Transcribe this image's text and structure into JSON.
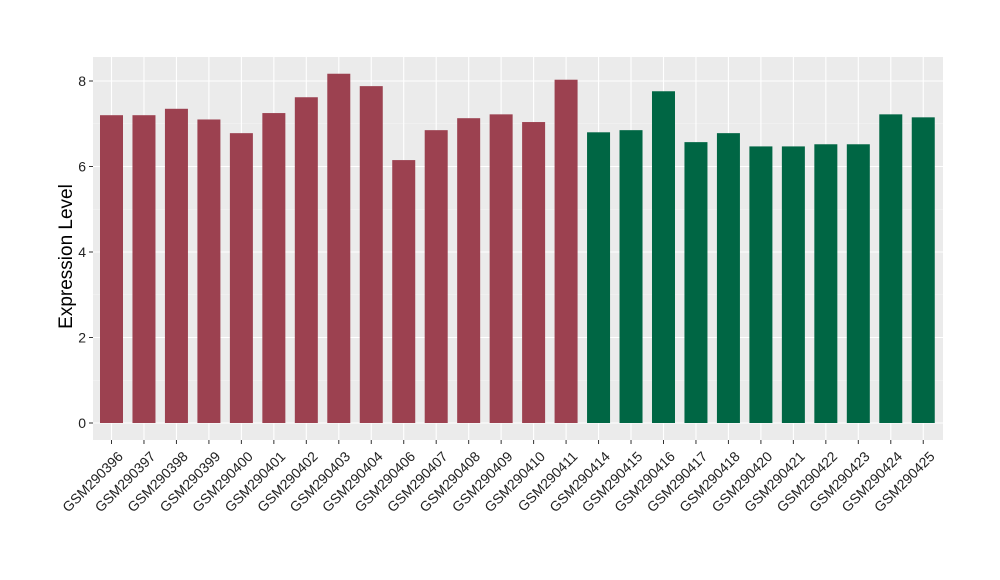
{
  "chart_data": {
    "type": "bar",
    "title": "",
    "xlabel": "",
    "ylabel": "Expression Level",
    "ylim": [
      0,
      8.4
    ],
    "yticks": [
      0,
      2,
      4,
      6,
      8
    ],
    "ytick_labels": [
      "0",
      "2",
      "4",
      "6",
      "8"
    ],
    "grid": true,
    "legend": "none",
    "categories": [
      "GSM290396",
      "GSM290397",
      "GSM290398",
      "GSM290399",
      "GSM290400",
      "GSM290401",
      "GSM290402",
      "GSM290403",
      "GSM290404",
      "GSM290406",
      "GSM290407",
      "GSM290408",
      "GSM290409",
      "GSM290410",
      "GSM290411",
      "GSM290414",
      "GSM290415",
      "GSM290416",
      "GSM290417",
      "GSM290418",
      "GSM290420",
      "GSM290421",
      "GSM290422",
      "GSM290423",
      "GSM290424",
      "GSM290425"
    ],
    "values": [
      7.2,
      7.2,
      7.35,
      7.1,
      6.78,
      7.25,
      7.62,
      8.17,
      7.88,
      6.15,
      6.85,
      7.13,
      7.22,
      7.04,
      8.03,
      6.8,
      6.85,
      7.76,
      6.57,
      6.78,
      6.47,
      6.47,
      6.52,
      6.52,
      7.22,
      7.15
    ],
    "group_of_bar": [
      0,
      0,
      0,
      0,
      0,
      0,
      0,
      0,
      0,
      0,
      0,
      0,
      0,
      0,
      0,
      1,
      1,
      1,
      1,
      1,
      1,
      1,
      1,
      1,
      1,
      1
    ],
    "colors": {
      "group_colors": [
        "#9c4150",
        "#006644"
      ],
      "panel_background": "#ebebeb",
      "grid_major": "#ffffff",
      "grid_minor": "#f5f5f5",
      "tick_text": "#222222",
      "tick_mark": "#333333"
    }
  }
}
